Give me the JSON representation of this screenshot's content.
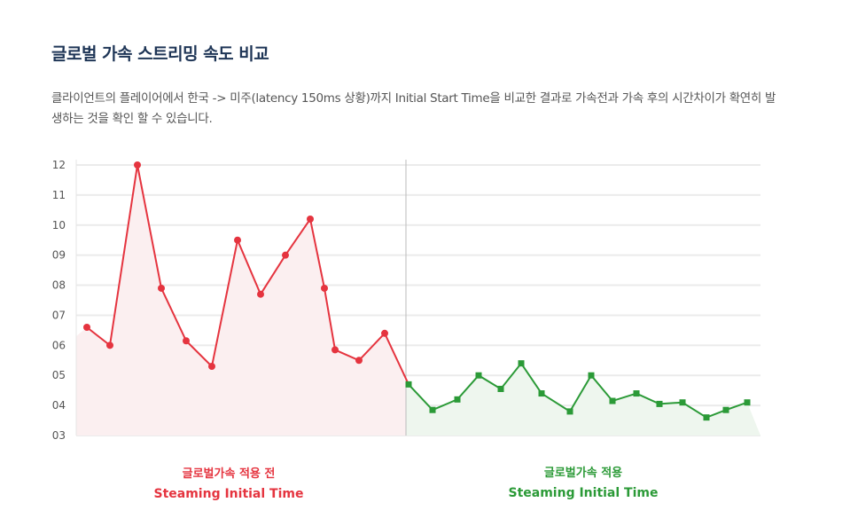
{
  "header": {
    "title": "글로벌 가속 스트리밍 속도 비교",
    "description": "클라이언트의 플레이어에서 한국 -> 미주(latency 150ms 상황)까지 Initial Start Time을 비교한 결과로 가속전과 가속 후의 시간차이가 확연히 발생하는 것을 확인 할 수 있습니다."
  },
  "chart_data": {
    "type": "line",
    "ylim": [
      3,
      12
    ],
    "yticks": [
      "03",
      "04",
      "05",
      "06",
      "07",
      "08",
      "09",
      "10",
      "11",
      "12"
    ],
    "grid": true,
    "series": [
      {
        "name": "글로벌가속 적용 전 Steaming Initial Time",
        "color": "#e5343f",
        "fill": "#fbeff0",
        "marker": "circle",
        "values": [
          6.6,
          6.0,
          12.0,
          7.9,
          6.15,
          5.3,
          9.5,
          7.7,
          9.0,
          10.2,
          7.9,
          5.85,
          5.5,
          6.4
        ]
      },
      {
        "name": "글로벌가속 적용 Steaming Initial Time",
        "color": "#2b9a37",
        "fill": "#eef6ee",
        "marker": "square",
        "values": [
          4.7,
          3.85,
          4.2,
          5.0,
          4.55,
          5.4,
          4.4,
          3.8,
          5.0,
          4.15,
          4.4,
          4.05,
          4.1,
          3.6,
          3.85,
          4.1
        ]
      }
    ]
  },
  "legend": {
    "before": {
      "line1": "글로벌가속 적용 전",
      "line2": "Steaming Initial Time",
      "color": "#e5343f"
    },
    "after": {
      "line1": "글로벌가속 적용",
      "line2": "Steaming Initial Time",
      "color": "#2b9a37"
    }
  }
}
